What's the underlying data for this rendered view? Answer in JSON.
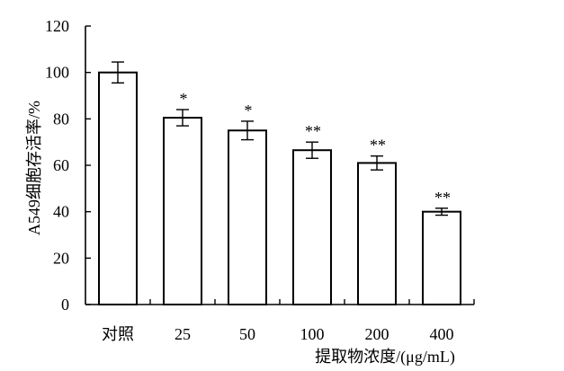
{
  "chart_data": {
    "type": "bar",
    "categories": [
      "对照",
      "25",
      "50",
      "100",
      "200",
      "400"
    ],
    "values": [
      100,
      80.5,
      75,
      66.5,
      61,
      40
    ],
    "errors": [
      4.5,
      3.5,
      4,
      3.5,
      3,
      1.5
    ],
    "significance": [
      "",
      "*",
      "*",
      "**",
      "**",
      "**"
    ],
    "xlabel": "提取物浓度/(μg/mL)",
    "ylabel": "A549细胞存活率/%",
    "ylim": [
      0,
      120
    ],
    "yticks": [
      0,
      20,
      40,
      60,
      80,
      100,
      120
    ],
    "grid": false,
    "legend": "none"
  }
}
